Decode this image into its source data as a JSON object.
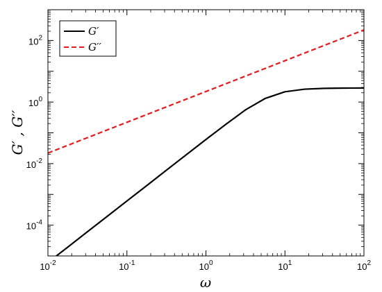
{
  "chart_data": {
    "type": "line",
    "title": "",
    "xlabel": "ω",
    "ylabel": "G′ , G′′",
    "xscale": "log",
    "yscale": "log",
    "xlim": [
      0.01,
      100
    ],
    "ylim": [
      1e-05,
      1000
    ],
    "grid": false,
    "legend_position": "top-left",
    "x_ticks": [
      {
        "value": 0.01,
        "base": "10",
        "exp": "-2"
      },
      {
        "value": 0.1,
        "base": "10",
        "exp": "-1"
      },
      {
        "value": 1,
        "base": "10",
        "exp": "0"
      },
      {
        "value": 10,
        "base": "10",
        "exp": "1"
      },
      {
        "value": 100,
        "base": "10",
        "exp": "2"
      }
    ],
    "y_ticks": [
      {
        "value": 0.0001,
        "base": "10",
        "exp": "-4"
      },
      {
        "value": 0.01,
        "base": "10",
        "exp": "-2"
      },
      {
        "value": 1,
        "base": "10",
        "exp": "0"
      },
      {
        "value": 100,
        "base": "10",
        "exp": "2"
      }
    ],
    "series": [
      {
        "name": "G′",
        "color": "#000000",
        "dash": "solid",
        "x": [
          0.01,
          0.0178,
          0.0316,
          0.0562,
          0.1,
          0.178,
          0.316,
          0.562,
          1,
          1.78,
          3.16,
          5.62,
          10,
          17.8,
          31.6,
          56.2,
          100
        ],
        "y": [
          6.1e-06,
          1.93e-05,
          6.1e-05,
          0.000193,
          0.00061,
          0.00193,
          0.0061,
          0.0193,
          0.0608,
          0.188,
          0.555,
          1.31,
          2.16,
          2.62,
          2.79,
          2.84,
          2.86
        ]
      },
      {
        "name": "G′′",
        "color": "#e41a1c",
        "dash": "dashed",
        "x": [
          0.01,
          0.0316,
          0.1,
          0.316,
          1,
          3.16,
          10,
          31.6,
          100
        ],
        "y": [
          0.022,
          0.0696,
          0.22,
          0.696,
          2.2,
          6.96,
          22,
          69.6,
          220
        ]
      }
    ]
  }
}
